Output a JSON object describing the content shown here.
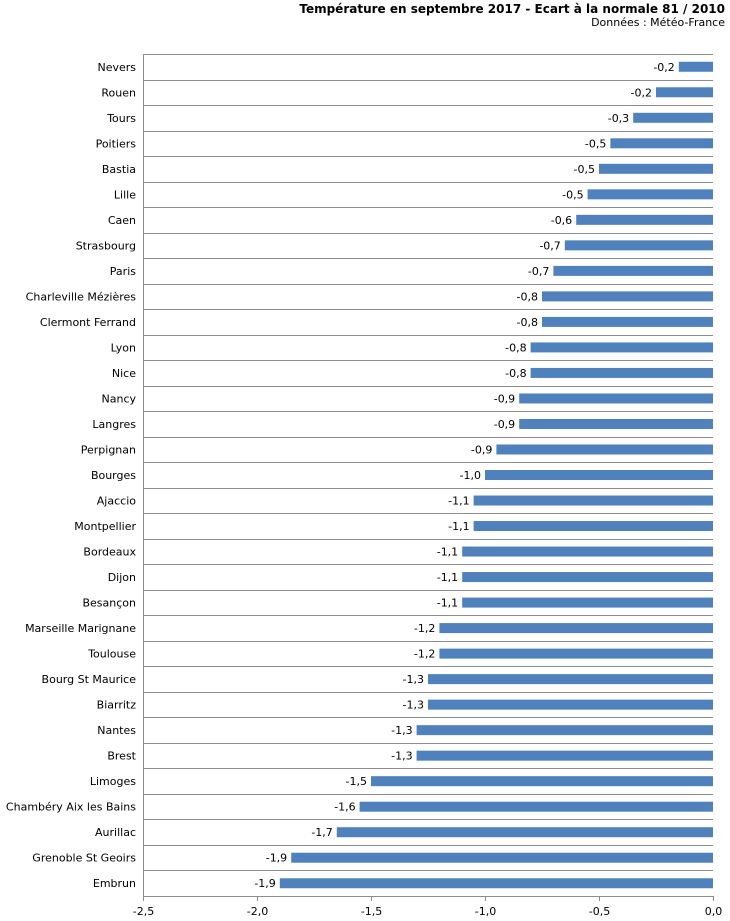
{
  "chart_data": {
    "type": "bar",
    "orientation": "horizontal",
    "title": "Température en septembre 2017 - Ecart à la normale 81 / 2010",
    "subtitle": "Données : Météo-France",
    "xlabel": "",
    "ylabel": "",
    "xlim": [
      -2.5,
      0
    ],
    "xticks": [
      "-2,5",
      "-2,0",
      "-1,5",
      "-1,0",
      "-0,5",
      "0,0"
    ],
    "xtick_values": [
      -2.5,
      -2.0,
      -1.5,
      -1.0,
      -0.5,
      0.0
    ],
    "bar_color": "#4f81bd",
    "categories": [
      "Nevers",
      "Rouen",
      "Tours",
      "Poitiers",
      "Bastia",
      "Lille",
      "Caen",
      "Strasbourg",
      "Paris",
      "Charleville Mézières",
      "Clermont Ferrand",
      "Lyon",
      "Nice",
      "Nancy",
      "Langres",
      "Perpignan",
      "Bourges",
      "Ajaccio",
      "Montpellier",
      "Bordeaux",
      "Dijon",
      "Besançon",
      "Marseille Marignane",
      "Toulouse",
      "Bourg St Maurice",
      "Biarritz",
      "Nantes",
      "Brest",
      "Limoges",
      "Chambéry Aix les Bains",
      "Aurillac",
      "Grenoble St Geoirs",
      "Embrun"
    ],
    "values": [
      -0.15,
      -0.25,
      -0.35,
      -0.45,
      -0.5,
      -0.55,
      -0.6,
      -0.65,
      -0.7,
      -0.75,
      -0.75,
      -0.8,
      -0.8,
      -0.85,
      -0.85,
      -0.95,
      -1.0,
      -1.05,
      -1.05,
      -1.1,
      -1.1,
      -1.1,
      -1.2,
      -1.2,
      -1.25,
      -1.25,
      -1.3,
      -1.3,
      -1.5,
      -1.55,
      -1.65,
      -1.85,
      -1.9
    ],
    "data_labels": [
      "-0,2",
      "-0,2",
      "-0,3",
      "-0,5",
      "-0,5",
      "-0,5",
      "-0,6",
      "-0,7",
      "-0,7",
      "-0,8",
      "-0,8",
      "-0,8",
      "-0,8",
      "-0,9",
      "-0,9",
      "-0,9",
      "-1,0",
      "-1,1",
      "-1,1",
      "-1,1",
      "-1,1",
      "-1,1",
      "-1,2",
      "-1,2",
      "-1,3",
      "-1,3",
      "-1,3",
      "-1,3",
      "-1,5",
      "-1,6",
      "-1,7",
      "-1,9",
      "-1,9"
    ],
    "grid": true
  }
}
